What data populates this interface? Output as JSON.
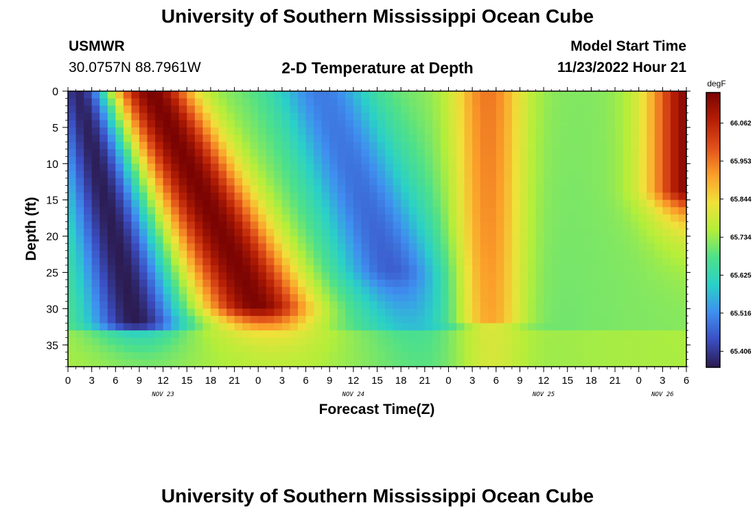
{
  "page": {
    "title": "University of Southern Mississippi Ocean Cube",
    "footer_title": "University of Southern Mississippi Ocean Cube",
    "station": "USMWR",
    "coords": "30.0757N  88.7961W",
    "subtitle": "2-D Temperature at Depth",
    "model_start_label": "Model Start Time",
    "model_start_value": "11/23/2022 Hour 21"
  },
  "colors": {
    "colormap": [
      "#2b1a4e",
      "#3b4ec2",
      "#3f8ff0",
      "#2ad0c8",
      "#4ee08a",
      "#b4ee3a",
      "#f0e13a",
      "#fb9e2a",
      "#e0501a",
      "#b51e05",
      "#7a0403"
    ]
  },
  "chart_data": {
    "type": "heatmap",
    "title": "2-D Temperature at Depth",
    "xlabel": "Forecast Time(Z)",
    "ylabel": "Depth (ft)",
    "x_range_hours": [
      0,
      78
    ],
    "ylim": [
      0,
      38
    ],
    "x_tick_labels": [
      "0",
      "3",
      "6",
      "9",
      "12",
      "15",
      "18",
      "21",
      "0",
      "3",
      "6",
      "9",
      "12",
      "15",
      "18",
      "21",
      "0",
      "3",
      "6",
      "9",
      "12",
      "15",
      "18",
      "21",
      "0",
      "3",
      "6"
    ],
    "y_ticks": [
      0,
      5,
      10,
      15,
      20,
      25,
      30,
      35
    ],
    "y_tick_labels": [
      "0",
      "5",
      "10",
      "15",
      "20",
      "25",
      "30",
      "35"
    ],
    "date_labels": [
      {
        "text": "NOV 23",
        "hour": 12
      },
      {
        "text": "NOV 24",
        "hour": 36
      },
      {
        "text": "NOV 25",
        "hour": 60
      },
      {
        "text": "NOV 26",
        "hour": 75
      }
    ],
    "colorbar": {
      "unit": "degF",
      "min": 65.36,
      "max": 66.15,
      "tick_values": [
        65.406,
        65.516,
        65.625,
        65.734,
        65.844,
        65.953,
        66.062
      ],
      "tick_labels": [
        "65.406",
        "65.516",
        "65.625",
        "65.734",
        "65.844",
        "65.953",
        "66.062"
      ]
    },
    "description_of_field": "temperature varies with forecast hour and depth"
  }
}
